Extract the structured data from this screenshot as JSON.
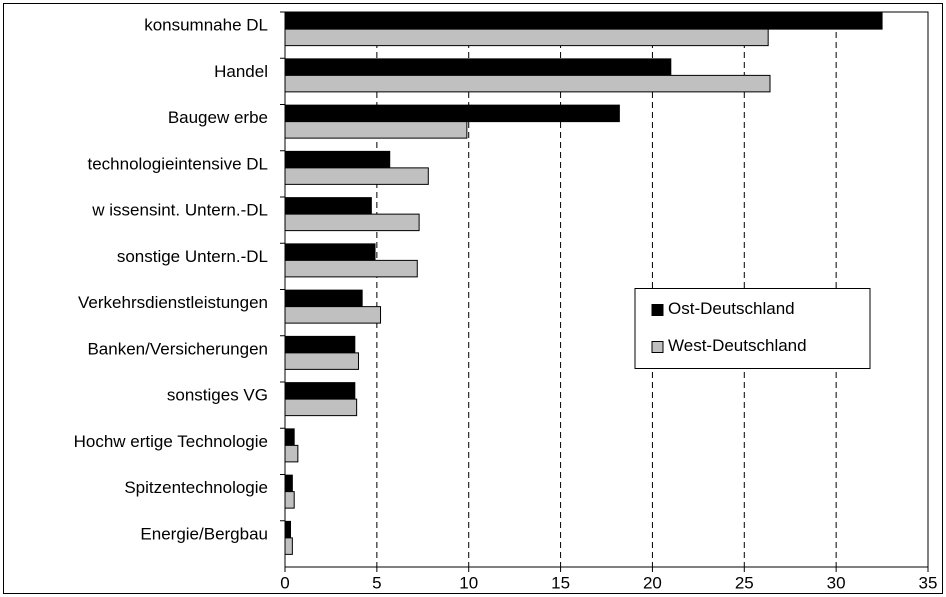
{
  "chart_data": {
    "type": "hbar",
    "categories": [
      "konsumnahe DL",
      "Handel",
      "Baugew erbe",
      "technologieintensive DL",
      "w issensint. Untern.-DL",
      "sonstige Untern.-DL",
      "Verkehrsdienstleistungen",
      "Banken/Versicherungen",
      "sonstiges VG",
      "Hochw ertige Technologie",
      "Spitzentechnologie",
      "Energie/Bergbau"
    ],
    "series": [
      {
        "name": "Ost-Deutschland",
        "color": "#000000",
        "values": [
          32.5,
          21.0,
          18.2,
          5.7,
          4.7,
          4.9,
          4.2,
          3.8,
          3.8,
          0.5,
          0.4,
          0.3
        ]
      },
      {
        "name": "West-Deutschland",
        "color": "#c0c0c0",
        "values": [
          26.3,
          26.4,
          9.9,
          7.8,
          7.3,
          7.2,
          5.2,
          4.0,
          3.9,
          0.7,
          0.5,
          0.4
        ]
      }
    ],
    "xlim": [
      0,
      35
    ],
    "xticks": [
      0,
      5,
      10,
      15,
      20,
      25,
      30,
      35
    ],
    "grid": true,
    "legend": "right"
  }
}
